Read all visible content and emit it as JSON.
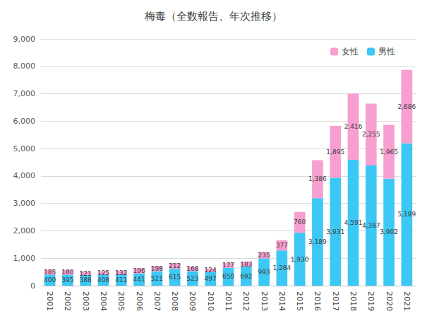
{
  "chart_data": {
    "type": "bar",
    "title": "梅毒（全数報告、年次推移）",
    "categories": [
      "2001",
      "2002",
      "2003",
      "2004",
      "2005",
      "2006",
      "2007",
      "2008",
      "2009",
      "2010",
      "2011",
      "2012",
      "2013",
      "2014",
      "2015",
      "2016",
      "2017",
      "2018",
      "2019",
      "2020",
      "2021"
    ],
    "series": [
      {
        "name": "男性",
        "color": "#3cc8f5",
        "values": [
          400,
          395,
          388,
          408,
          411,
          441,
          521,
          615,
          523,
          497,
          650,
          692,
          993,
          1284,
          1930,
          3189,
          3931,
          4591,
          4387,
          3902,
          5189
        ],
        "value_labels": [
          "400",
          "395",
          "388",
          "408",
          "411",
          "441",
          "521",
          "615",
          "523",
          "497",
          "650",
          "692",
          "993",
          "1,284",
          "1,930",
          "3,189",
          "3,931",
          "4,591",
          "4,387",
          "3,902",
          "5,189"
        ]
      },
      {
        "name": "女性",
        "color": "#f79fd0",
        "values": [
          185,
          180,
          121,
          125,
          132,
          196,
          198,
          212,
          168,
          124,
          177,
          183,
          235,
          377,
          760,
          1386,
          1895,
          2416,
          2255,
          1965,
          2686
        ],
        "value_labels": [
          "185",
          "180",
          "121",
          "125",
          "132",
          "196",
          "198",
          "212",
          "168",
          "124",
          "177",
          "183",
          "235",
          "377",
          "760",
          "1,386",
          "1,895",
          "2,416",
          "2,255",
          "1,965",
          "2,686"
        ]
      }
    ],
    "stacked": true,
    "data_labels": true,
    "legend": "top-right",
    "grid": true,
    "ylim": [
      0,
      9000
    ],
    "yticks": [
      0,
      {
        "value": 1000,
        "label": "1,000"
      },
      {
        "value": 2000,
        "label": "2,000"
      },
      {
        "value": 3000,
        "label": "3,000"
      },
      {
        "value": 4000,
        "label": "4,000"
      },
      {
        "value": 5000,
        "label": "5,000"
      },
      {
        "value": 6000,
        "label": "6,000"
      },
      {
        "value": 7000,
        "label": "7,000"
      },
      {
        "value": 8000,
        "label": "8,000"
      },
      {
        "value": 9000,
        "label": "9,000"
      }
    ]
  }
}
